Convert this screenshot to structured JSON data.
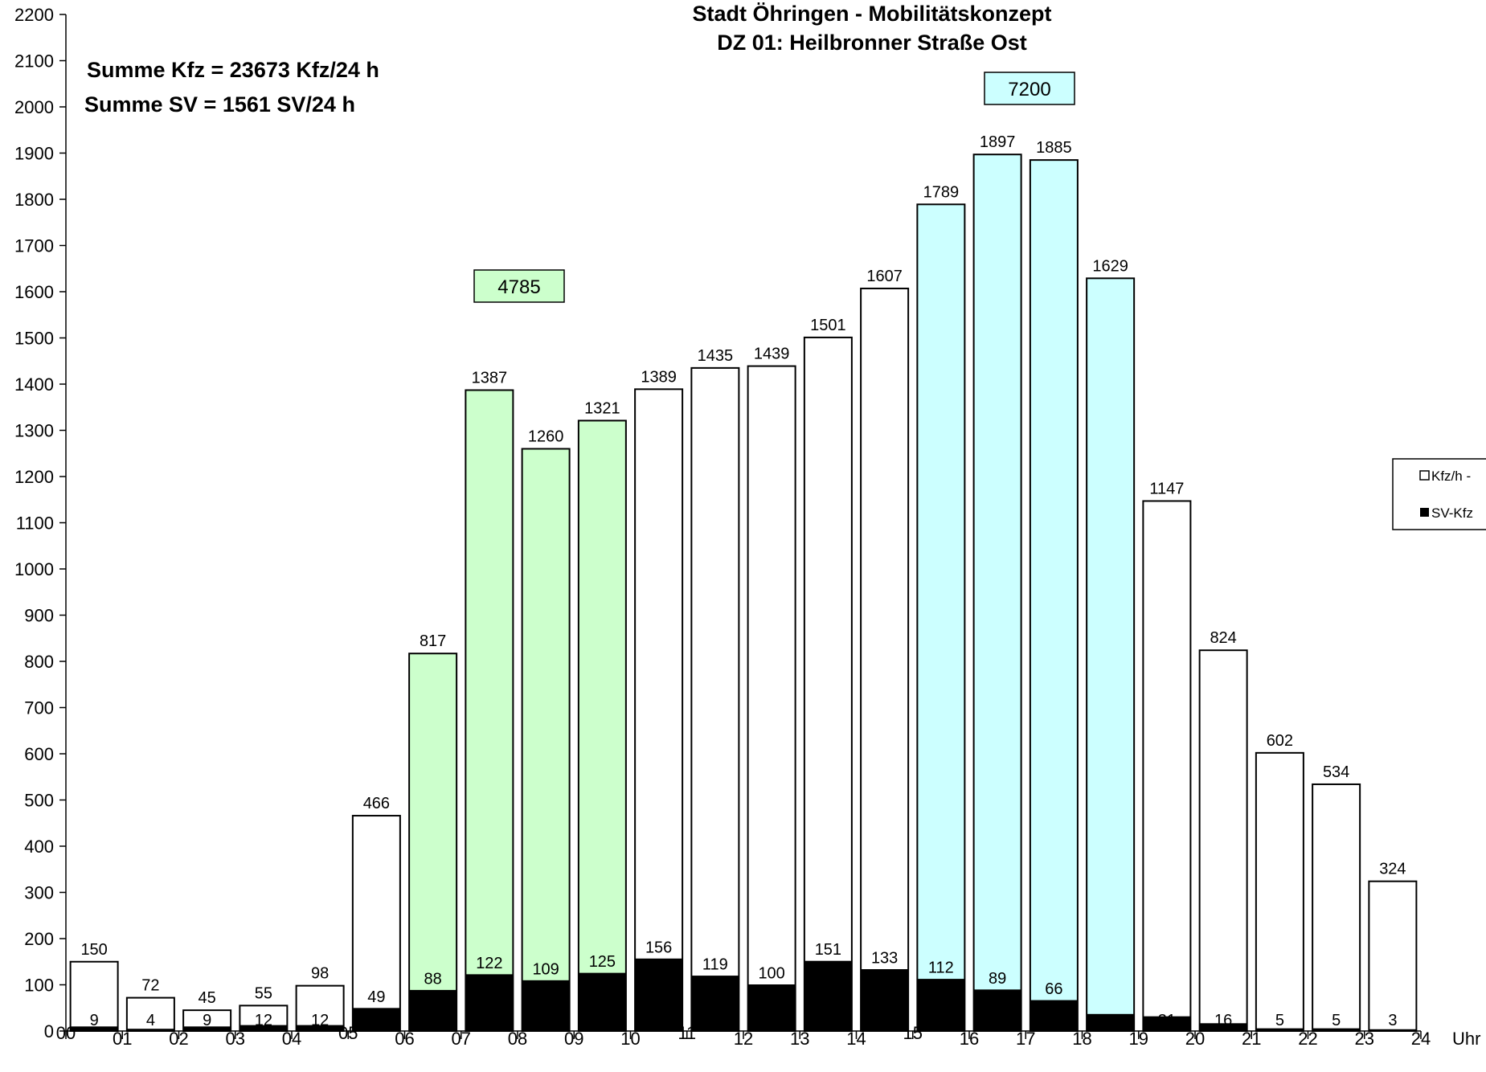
{
  "chart_data": {
    "type": "bar",
    "title": "Stadt Öhringen - Mobilitätskonzept",
    "subtitle": "DZ 01: Heilbronner Straße Ost",
    "summary": [
      "Summe Kfz = 23673 Kfz/24 h",
      "Summe SV = 1561 SV/24 h"
    ],
    "xlabel": "Uhr",
    "ylabel": "",
    "ylim": [
      0,
      2200
    ],
    "yticks": [
      0,
      100,
      200,
      300,
      400,
      500,
      600,
      700,
      800,
      900,
      1000,
      1100,
      1200,
      1300,
      1400,
      1500,
      1600,
      1700,
      1800,
      1900,
      2000,
      2100,
      2200
    ],
    "xticks": [
      "00",
      "01",
      "02",
      "03",
      "04",
      "05",
      "06",
      "07",
      "08",
      "09",
      "10",
      "11",
      "12",
      "13",
      "14",
      "15",
      "16",
      "17",
      "18",
      "19",
      "20",
      "21",
      "22",
      "23",
      "24"
    ],
    "series": [
      {
        "name": "Kfz/h -",
        "values": [
          150,
          72,
          45,
          55,
          98,
          466,
          817,
          1387,
          1260,
          1321,
          1389,
          1435,
          1439,
          1501,
          1607,
          1789,
          1897,
          1885,
          1629,
          1147,
          824,
          602,
          534,
          324
        ]
      },
      {
        "name": "SV-Kfz",
        "values": [
          9,
          4,
          9,
          12,
          12,
          49,
          88,
          122,
          109,
          125,
          156,
          119,
          100,
          151,
          133,
          112,
          89,
          66,
          36,
          31,
          16,
          5,
          5,
          3
        ]
      }
    ],
    "peak_periods": [
      {
        "hours": [
          6,
          7,
          8,
          9
        ],
        "sum": "4785",
        "color": "#ccffcc"
      },
      {
        "hours": [
          15,
          16,
          17,
          18
        ],
        "sum": "7200",
        "color": "#ccffff"
      }
    ],
    "legend_position": "right",
    "grid": false
  }
}
